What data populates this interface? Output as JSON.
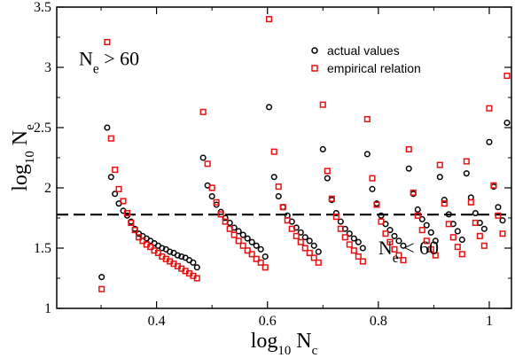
{
  "chart_data": {
    "type": "scatter",
    "xlim": [
      0.22,
      1.04
    ],
    "ylim": [
      1.0,
      3.5
    ],
    "x_ticks": [
      0.4,
      0.6,
      0.8,
      1.0
    ],
    "x_tick_labels": [
      "0.4",
      "0.6",
      "0.8",
      "1"
    ],
    "y_ticks": [
      1.0,
      1.5,
      2.0,
      2.5,
      3.0,
      3.5
    ],
    "y_tick_labels": [
      "1",
      "1.5",
      "2",
      "2.5",
      "3",
      "3.5"
    ],
    "xlabel": {
      "base": "log",
      "sub": "10",
      "rest": " N",
      "sub2": "c"
    },
    "ylabel": {
      "base": "log",
      "sub": "10",
      "rest": " N",
      "sub2": "e"
    },
    "legend_position": "top-right",
    "threshold_line": {
      "y": 1.778,
      "style": "dashed"
    },
    "annotations": [
      {
        "id": "upper",
        "pre": "N",
        "sub": "e",
        "post": " > 60",
        "at": [
          0.26,
          3.02
        ]
      },
      {
        "id": "lower",
        "pre": "N",
        "sub": "e",
        "post": " < 60",
        "at": [
          0.8,
          1.45
        ]
      }
    ],
    "series": [
      {
        "name": "actual values",
        "marker": "circle",
        "color": "#000000",
        "points": [
          [
            0.301,
            1.26
          ],
          [
            0.311,
            2.5
          ],
          [
            0.318,
            2.09
          ],
          [
            0.325,
            1.95
          ],
          [
            0.332,
            1.87
          ],
          [
            0.34,
            1.81
          ],
          [
            0.347,
            1.77
          ],
          [
            0.354,
            1.72
          ],
          [
            0.361,
            1.66
          ],
          [
            0.368,
            1.62
          ],
          [
            0.375,
            1.6
          ],
          [
            0.382,
            1.58
          ],
          [
            0.389,
            1.56
          ],
          [
            0.396,
            1.54
          ],
          [
            0.403,
            1.52
          ],
          [
            0.41,
            1.5
          ],
          [
            0.417,
            1.49
          ],
          [
            0.424,
            1.47
          ],
          [
            0.431,
            1.46
          ],
          [
            0.438,
            1.44
          ],
          [
            0.445,
            1.43
          ],
          [
            0.452,
            1.42
          ],
          [
            0.459,
            1.4
          ],
          [
            0.466,
            1.38
          ],
          [
            0.473,
            1.34
          ],
          [
            0.484,
            2.25
          ],
          [
            0.492,
            2.02
          ],
          [
            0.5,
            1.93
          ],
          [
            0.508,
            1.86
          ],
          [
            0.516,
            1.8
          ],
          [
            0.524,
            1.75
          ],
          [
            0.532,
            1.71
          ],
          [
            0.54,
            1.67
          ],
          [
            0.548,
            1.64
          ],
          [
            0.556,
            1.61
          ],
          [
            0.564,
            1.58
          ],
          [
            0.572,
            1.55
          ],
          [
            0.58,
            1.52
          ],
          [
            0.588,
            1.49
          ],
          [
            0.596,
            1.43
          ],
          [
            0.603,
            2.67
          ],
          [
            0.612,
            2.09
          ],
          [
            0.62,
            1.93
          ],
          [
            0.628,
            1.84
          ],
          [
            0.636,
            1.77
          ],
          [
            0.644,
            1.72
          ],
          [
            0.652,
            1.67
          ],
          [
            0.66,
            1.63
          ],
          [
            0.668,
            1.59
          ],
          [
            0.676,
            1.56
          ],
          [
            0.684,
            1.52
          ],
          [
            0.692,
            1.47
          ],
          [
            0.7,
            2.32
          ],
          [
            0.708,
            2.08
          ],
          [
            0.716,
            1.9
          ],
          [
            0.724,
            1.79
          ],
          [
            0.732,
            1.72
          ],
          [
            0.74,
            1.66
          ],
          [
            0.748,
            1.62
          ],
          [
            0.756,
            1.58
          ],
          [
            0.764,
            1.55
          ],
          [
            0.772,
            1.5
          ],
          [
            0.78,
            2.28
          ],
          [
            0.789,
            1.99
          ],
          [
            0.797,
            1.87
          ],
          [
            0.805,
            1.77
          ],
          [
            0.813,
            1.7
          ],
          [
            0.821,
            1.65
          ],
          [
            0.829,
            1.6
          ],
          [
            0.837,
            1.56
          ],
          [
            0.845,
            1.52
          ],
          [
            0.855,
            2.16
          ],
          [
            0.863,
            1.95
          ],
          [
            0.871,
            1.82
          ],
          [
            0.879,
            1.74
          ],
          [
            0.887,
            1.69
          ],
          [
            0.895,
            1.63
          ],
          [
            0.903,
            1.56
          ],
          [
            0.911,
            2.09
          ],
          [
            0.919,
            1.9
          ],
          [
            0.927,
            1.78
          ],
          [
            0.935,
            1.7
          ],
          [
            0.943,
            1.64
          ],
          [
            0.951,
            1.57
          ],
          [
            0.959,
            2.12
          ],
          [
            0.967,
            1.92
          ],
          [
            0.975,
            1.79
          ],
          [
            0.983,
            1.71
          ],
          [
            0.991,
            1.66
          ],
          [
            1.0,
            2.38
          ],
          [
            1.008,
            2.01
          ],
          [
            1.016,
            1.84
          ],
          [
            1.024,
            1.73
          ],
          [
            1.032,
            2.54
          ]
        ]
      },
      {
        "name": "empirical relation",
        "marker": "square",
        "color": "#e8110f",
        "points": [
          [
            0.301,
            1.16
          ],
          [
            0.311,
            3.21
          ],
          [
            0.318,
            2.41
          ],
          [
            0.325,
            2.15
          ],
          [
            0.332,
            1.99
          ],
          [
            0.34,
            1.89
          ],
          [
            0.347,
            1.79
          ],
          [
            0.354,
            1.71
          ],
          [
            0.361,
            1.65
          ],
          [
            0.368,
            1.59
          ],
          [
            0.375,
            1.56
          ],
          [
            0.382,
            1.53
          ],
          [
            0.389,
            1.51
          ],
          [
            0.396,
            1.48
          ],
          [
            0.403,
            1.46
          ],
          [
            0.41,
            1.43
          ],
          [
            0.417,
            1.41
          ],
          [
            0.424,
            1.39
          ],
          [
            0.431,
            1.37
          ],
          [
            0.438,
            1.35
          ],
          [
            0.445,
            1.33
          ],
          [
            0.452,
            1.31
          ],
          [
            0.459,
            1.29
          ],
          [
            0.466,
            1.27
          ],
          [
            0.473,
            1.25
          ],
          [
            0.484,
            2.63
          ],
          [
            0.492,
            2.2
          ],
          [
            0.5,
            2.0
          ],
          [
            0.508,
            1.88
          ],
          [
            0.516,
            1.78
          ],
          [
            0.524,
            1.72
          ],
          [
            0.532,
            1.66
          ],
          [
            0.54,
            1.61
          ],
          [
            0.548,
            1.56
          ],
          [
            0.556,
            1.52
          ],
          [
            0.564,
            1.48
          ],
          [
            0.572,
            1.45
          ],
          [
            0.58,
            1.41
          ],
          [
            0.588,
            1.38
          ],
          [
            0.596,
            1.34
          ],
          [
            0.603,
            3.4
          ],
          [
            0.612,
            2.3
          ],
          [
            0.62,
            2.01
          ],
          [
            0.628,
            1.84
          ],
          [
            0.636,
            1.73
          ],
          [
            0.644,
            1.66
          ],
          [
            0.652,
            1.6
          ],
          [
            0.66,
            1.55
          ],
          [
            0.668,
            1.5
          ],
          [
            0.676,
            1.46
          ],
          [
            0.684,
            1.42
          ],
          [
            0.692,
            1.38
          ],
          [
            0.7,
            2.69
          ],
          [
            0.708,
            2.14
          ],
          [
            0.716,
            1.91
          ],
          [
            0.724,
            1.76
          ],
          [
            0.732,
            1.66
          ],
          [
            0.74,
            1.59
          ],
          [
            0.748,
            1.53
          ],
          [
            0.756,
            1.48
          ],
          [
            0.764,
            1.43
          ],
          [
            0.772,
            1.39
          ],
          [
            0.78,
            2.57
          ],
          [
            0.789,
            2.08
          ],
          [
            0.797,
            1.86
          ],
          [
            0.805,
            1.72
          ],
          [
            0.813,
            1.62
          ],
          [
            0.821,
            1.55
          ],
          [
            0.829,
            1.49
          ],
          [
            0.837,
            1.44
          ],
          [
            0.845,
            1.4
          ],
          [
            0.855,
            2.32
          ],
          [
            0.863,
            1.96
          ],
          [
            0.871,
            1.77
          ],
          [
            0.879,
            1.65
          ],
          [
            0.887,
            1.56
          ],
          [
            0.895,
            1.49
          ],
          [
            0.903,
            1.44
          ],
          [
            0.911,
            2.19
          ],
          [
            0.919,
            1.87
          ],
          [
            0.927,
            1.7
          ],
          [
            0.935,
            1.59
          ],
          [
            0.943,
            1.51
          ],
          [
            0.951,
            1.45
          ],
          [
            0.959,
            2.22
          ],
          [
            0.967,
            1.88
          ],
          [
            0.975,
            1.71
          ],
          [
            0.983,
            1.6
          ],
          [
            0.991,
            1.52
          ],
          [
            1.0,
            2.66
          ],
          [
            1.008,
            2.02
          ],
          [
            1.016,
            1.77
          ],
          [
            1.024,
            1.62
          ],
          [
            1.032,
            2.93
          ]
        ]
      }
    ]
  }
}
